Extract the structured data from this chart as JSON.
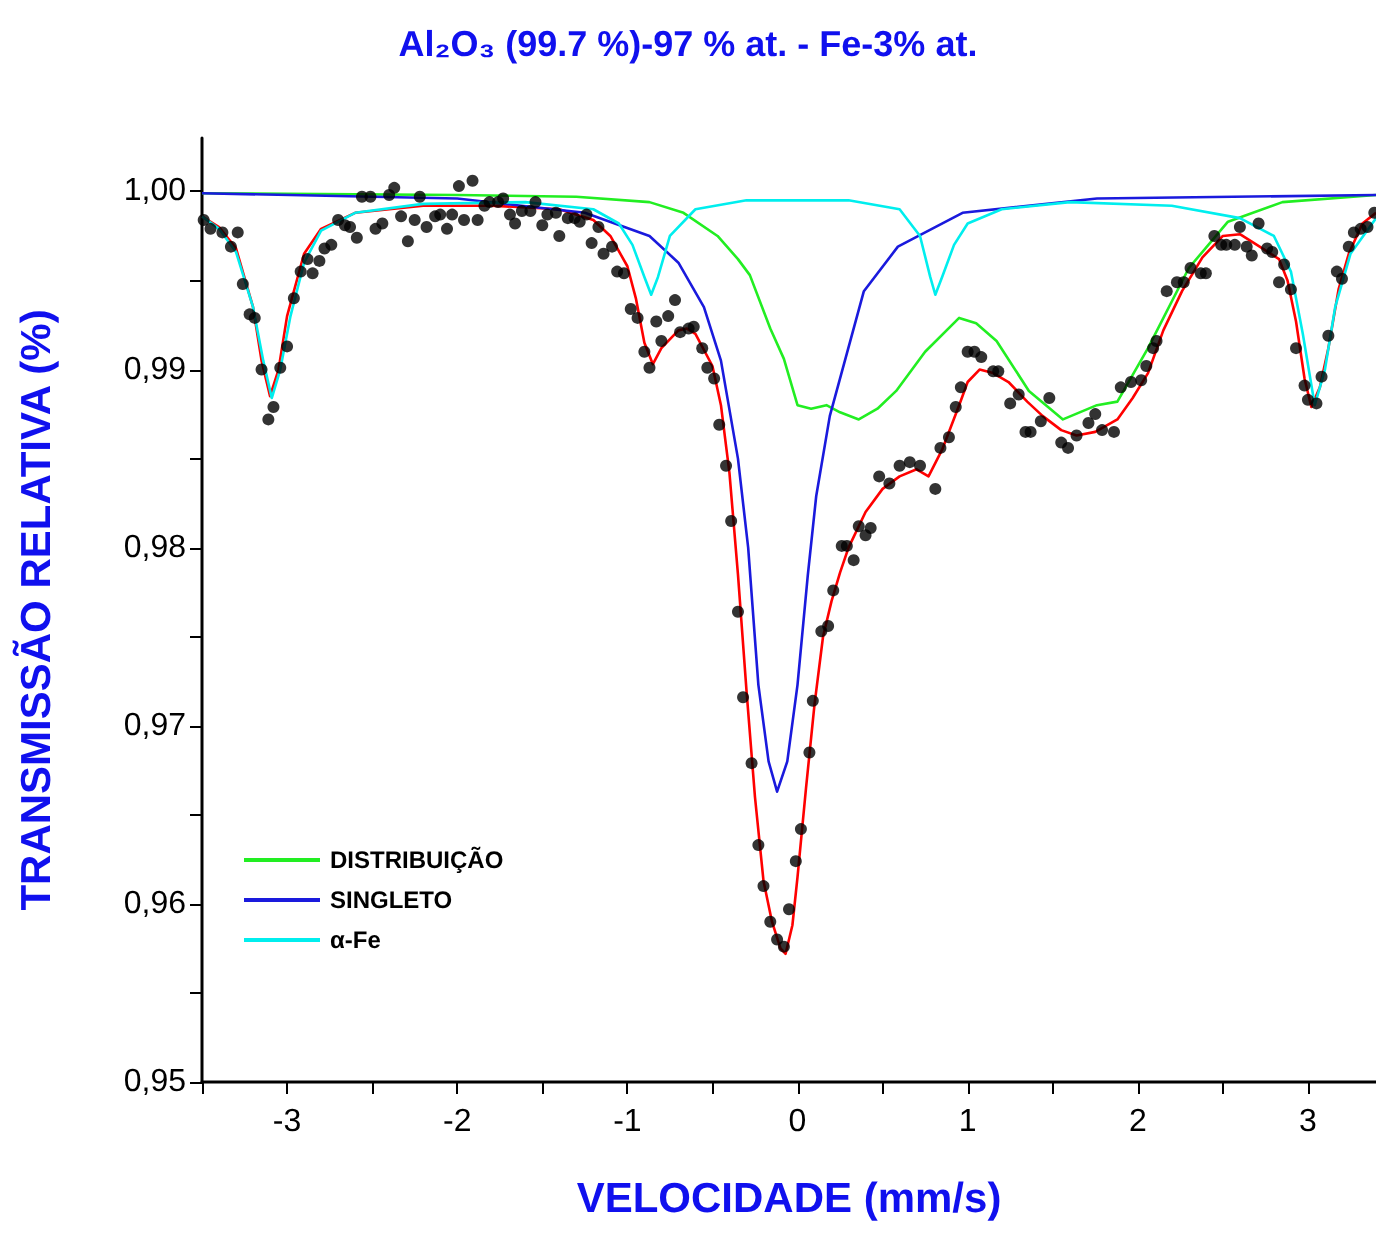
{
  "chart_data": {
    "type": "line",
    "title": "Al₂O₃ (99.7 %)-97 % at. - Fe-3% at.",
    "xlabel": "VELOCIDADE (mm/s)",
    "ylabel": "TRANSMISSÃO RELATIVA (%)",
    "xlim": [
      -3.5,
      3.4
    ],
    "ylim": [
      0.95,
      1.003
    ],
    "xticks": [
      {
        "value": -3.5,
        "label": null
      },
      -3,
      {
        "value": -2.5,
        "label": null
      },
      -2,
      {
        "value": -1.5,
        "label": null
      },
      -1,
      {
        "value": -0.5,
        "label": null
      },
      0,
      {
        "value": 0.5,
        "label": null
      },
      1,
      {
        "value": 1.5,
        "label": null
      },
      2,
      {
        "value": 2.5,
        "label": null
      },
      3
    ],
    "yticks": [
      {
        "value": 0.95,
        "label": "0,95"
      },
      {
        "value": 0.955,
        "label": null
      },
      {
        "value": 0.96,
        "label": "0,96"
      },
      {
        "value": 0.965,
        "label": null
      },
      {
        "value": 0.97,
        "label": "0,97"
      },
      {
        "value": 0.975,
        "label": null
      },
      {
        "value": 0.98,
        "label": "0,98"
      },
      {
        "value": 0.985,
        "label": null
      },
      {
        "value": 0.99,
        "label": "0,99"
      },
      {
        "value": 0.995,
        "label": null
      },
      {
        "value": 1,
        "label": "1,00"
      }
    ],
    "grid": false,
    "legend": "bottom left",
    "line_style": "solid",
    "series": [
      {
        "type": "scatter",
        "marker": "circle",
        "color": "#000000",
        "x": [
          -3.49,
          -3.45,
          -3.38,
          -3.33,
          -3.29,
          -3.26,
          -3.22,
          -3.19,
          -3.15,
          -3.11,
          -3.08,
          -3.04,
          -3.0,
          -2.96,
          -2.92,
          -2.88,
          -2.85,
          -2.81,
          -2.78,
          -2.74,
          -2.7,
          -2.66,
          -2.63,
          -2.59,
          -2.56,
          -2.51,
          -2.48,
          -2.44,
          -2.4,
          -2.37,
          -2.33,
          -2.29,
          -2.25,
          -2.22,
          -2.18,
          -2.13,
          -2.1,
          -2.06,
          -2.03,
          -1.99,
          -1.96,
          -1.91,
          -1.88,
          -1.84,
          -1.81,
          -1.76,
          -1.73,
          -1.69,
          -1.66,
          -1.62,
          -1.57,
          -1.54,
          -1.5,
          -1.47,
          -1.42,
          -1.4,
          -1.35,
          -1.31,
          -1.28,
          -1.24,
          -1.21,
          -1.17,
          -1.14,
          -1.09,
          -1.06,
          -1.02,
          -0.98,
          -0.94,
          -0.9,
          -0.87,
          -0.83,
          -0.8,
          -0.76,
          -0.72,
          -0.69,
          -0.64,
          -0.61,
          -0.56,
          -0.53,
          -0.49,
          -0.46,
          -0.42,
          -0.39,
          -0.35,
          -0.32,
          -0.27,
          -0.23,
          -0.2,
          -0.16,
          -0.12,
          -0.08,
          -0.05,
          -0.01,
          0.02,
          0.07,
          0.09,
          0.14,
          0.18,
          0.21,
          0.26,
          0.29,
          0.33,
          0.36,
          0.4,
          0.43,
          0.48,
          0.54,
          0.6,
          0.66,
          0.72,
          0.81,
          0.84,
          0.89,
          0.93,
          0.96,
          1.0,
          1.04,
          1.08,
          1.15,
          1.18,
          1.25,
          1.3,
          1.34,
          1.37,
          1.43,
          1.48,
          1.55,
          1.59,
          1.64,
          1.71,
          1.75,
          1.79,
          1.86,
          1.9,
          1.96,
          2.02,
          2.05,
          2.09,
          2.11,
          2.17,
          2.23,
          2.27,
          2.31,
          2.37,
          2.4,
          2.45,
          2.49,
          2.52,
          2.57,
          2.6,
          2.64,
          2.67,
          2.71,
          2.76,
          2.79,
          2.83,
          2.86,
          2.9,
          2.93,
          2.98,
          3.0,
          3.05,
          3.08,
          3.12,
          3.17,
          3.2,
          3.24,
          3.27,
          3.31,
          3.35,
          3.39
        ],
        "values": [
          0.9984,
          0.9979,
          0.9977,
          0.9969,
          0.9977,
          0.9948,
          0.9931,
          0.9929,
          0.99,
          0.9872,
          0.9879,
          0.9901,
          0.9913,
          0.994,
          0.9955,
          0.9962,
          0.9954,
          0.9961,
          0.9968,
          0.997,
          0.9984,
          0.9981,
          0.998,
          0.9974,
          0.9997,
          0.9997,
          0.9979,
          0.9982,
          0.9998,
          1.0002,
          0.9986,
          0.9972,
          0.9984,
          0.9997,
          0.998,
          0.9986,
          0.9987,
          0.9979,
          0.9987,
          1.0003,
          0.9984,
          1.0006,
          0.9984,
          0.9992,
          0.9994,
          0.9994,
          0.9996,
          0.9987,
          0.9982,
          0.9989,
          0.9989,
          0.9994,
          0.9981,
          0.9987,
          0.9988,
          0.9975,
          0.9985,
          0.9985,
          0.9983,
          0.9987,
          0.9971,
          0.998,
          0.9965,
          0.9969,
          0.9955,
          0.9954,
          0.9934,
          0.9929,
          0.991,
          0.9901,
          0.9927,
          0.9916,
          0.993,
          0.9939,
          0.9921,
          0.9923,
          0.9924,
          0.9912,
          0.9901,
          0.9895,
          0.9869,
          0.9846,
          0.9815,
          0.9764,
          0.9716,
          0.9679,
          0.9633,
          0.961,
          0.959,
          0.958,
          0.9576,
          0.9597,
          0.9624,
          0.9642,
          0.9685,
          0.9714,
          0.9753,
          0.9756,
          0.9776,
          0.9801,
          0.9801,
          0.9793,
          0.9812,
          0.9807,
          0.9811,
          0.984,
          0.9836,
          0.9846,
          0.9848,
          0.9846,
          0.9833,
          0.9856,
          0.9862,
          0.9879,
          0.989,
          0.991,
          0.991,
          0.9907,
          0.9899,
          0.9899,
          0.9881,
          0.9886,
          0.9865,
          0.9865,
          0.9871,
          0.9884,
          0.9859,
          0.9856,
          0.9863,
          0.987,
          0.9875,
          0.9866,
          0.9865,
          0.989,
          0.9893,
          0.9894,
          0.9902,
          0.9912,
          0.9916,
          0.9944,
          0.9949,
          0.9949,
          0.9957,
          0.9954,
          0.9954,
          0.9975,
          0.997,
          0.997,
          0.997,
          0.998,
          0.9969,
          0.9964,
          0.9982,
          0.9968,
          0.9966,
          0.9949,
          0.9959,
          0.9945,
          0.9912,
          0.9891,
          0.9883,
          0.9881,
          0.9896,
          0.9919,
          0.9955,
          0.9951,
          0.9969,
          0.9977,
          0.9979,
          0.998,
          0.9988
        ]
      },
      {
        "color": "#ff0000",
        "x": [
          -3.5,
          -3.4,
          -3.3,
          -3.2,
          -3.15,
          -3.1,
          -3.05,
          -3.0,
          -2.9,
          -2.8,
          -2.6,
          -2.2,
          -1.8,
          -1.4,
          -1.2,
          -1.1,
          -1.0,
          -0.95,
          -0.9,
          -0.85,
          -0.8,
          -0.7,
          -0.65,
          -0.6,
          -0.5,
          -0.45,
          -0.4,
          -0.35,
          -0.3,
          -0.25,
          -0.2,
          -0.15,
          -0.1,
          -0.07,
          -0.03,
          0.0,
          0.05,
          0.1,
          0.15,
          0.2,
          0.25,
          0.3,
          0.4,
          0.5,
          0.6,
          0.7,
          0.77,
          0.85,
          0.95,
          1.0,
          1.07,
          1.15,
          1.24,
          1.35,
          1.44,
          1.55,
          1.64,
          1.75,
          1.88,
          1.97,
          2.06,
          2.15,
          2.26,
          2.38,
          2.5,
          2.6,
          2.7,
          2.83,
          2.88,
          2.93,
          2.98,
          3.02,
          3.07,
          3.12,
          3.18,
          3.24,
          3.32,
          3.4
        ],
        "values": [
          0.9986,
          0.998,
          0.9968,
          0.9935,
          0.9905,
          0.9885,
          0.99,
          0.993,
          0.9965,
          0.9979,
          0.9988,
          0.9992,
          0.9992,
          0.999,
          0.9984,
          0.9975,
          0.9958,
          0.994,
          0.9915,
          0.9903,
          0.9912,
          0.9922,
          0.9923,
          0.992,
          0.9902,
          0.988,
          0.9842,
          0.9785,
          0.972,
          0.966,
          0.9613,
          0.959,
          0.9575,
          0.9572,
          0.9588,
          0.9615,
          0.9665,
          0.9712,
          0.975,
          0.977,
          0.9786,
          0.98,
          0.982,
          0.9833,
          0.984,
          0.9844,
          0.984,
          0.9855,
          0.988,
          0.9893,
          0.99,
          0.9898,
          0.9893,
          0.9882,
          0.9874,
          0.9866,
          0.9863,
          0.9865,
          0.9872,
          0.9884,
          0.9898,
          0.9922,
          0.9944,
          0.9963,
          0.9975,
          0.9976,
          0.997,
          0.9962,
          0.995,
          0.9927,
          0.9895,
          0.9879,
          0.989,
          0.9912,
          0.9945,
          0.9965,
          0.9982,
          0.9988
        ]
      },
      {
        "name": "DISTRIBUIÇÃO",
        "color": "#22ee22",
        "x": [
          -3.5,
          -2,
          -1.3,
          -0.87,
          -0.67,
          -0.47,
          -0.35,
          -0.28,
          -0.16,
          -0.08,
          0.0,
          0.08,
          0.17,
          0.25,
          0.36,
          0.47,
          0.58,
          0.75,
          0.95,
          1.05,
          1.17,
          1.36,
          1.56,
          1.76,
          1.88,
          2.06,
          2.3,
          2.53,
          2.85,
          3.4
        ],
        "values": [
          0.9999,
          0.9998,
          0.9997,
          0.9994,
          0.9988,
          0.9975,
          0.9962,
          0.9953,
          0.9923,
          0.9906,
          0.988,
          0.9878,
          0.988,
          0.9876,
          0.9872,
          0.9878,
          0.9888,
          0.991,
          0.9929,
          0.9926,
          0.9916,
          0.9888,
          0.9872,
          0.988,
          0.9882,
          0.9912,
          0.9957,
          0.9983,
          0.9994,
          0.9998
        ]
      },
      {
        "name": "SINGLETO",
        "color": "#1a1add",
        "x": [
          -3.5,
          -2,
          -1.25,
          -0.87,
          -0.7,
          -0.55,
          -0.45,
          -0.35,
          -0.29,
          -0.23,
          -0.17,
          -0.12,
          -0.06,
          0.0,
          0.06,
          0.11,
          0.19,
          0.39,
          0.59,
          0.97,
          1.76,
          3.4
        ],
        "values": [
          0.9999,
          0.9996,
          0.9988,
          0.9975,
          0.996,
          0.9935,
          0.9905,
          0.985,
          0.98,
          0.9723,
          0.968,
          0.9663,
          0.968,
          0.9723,
          0.9784,
          0.9829,
          0.9874,
          0.9944,
          0.9969,
          0.9988,
          0.9996,
          0.9998
        ]
      },
      {
        "name": "α-Fe",
        "color": "#00eeee",
        "x": [
          -3.5,
          -3.4,
          -3.3,
          -3.2,
          -3.14,
          -3.09,
          -3.04,
          -2.98,
          -2.9,
          -2.8,
          -2.6,
          -2.2,
          -1.6,
          -1.2,
          -1.05,
          -0.97,
          -0.9,
          -0.86,
          -0.82,
          -0.75,
          -0.6,
          -0.3,
          0.3,
          0.6,
          0.72,
          0.78,
          0.81,
          0.85,
          0.92,
          1.0,
          1.2,
          1.6,
          2.2,
          2.6,
          2.8,
          2.9,
          2.97,
          3.04,
          3.1,
          3.16,
          3.25,
          3.4
        ],
        "values": [
          0.9986,
          0.9979,
          0.9966,
          0.9935,
          0.9905,
          0.9884,
          0.99,
          0.993,
          0.996,
          0.9978,
          0.9988,
          0.9993,
          0.9994,
          0.999,
          0.9982,
          0.997,
          0.9952,
          0.9942,
          0.9952,
          0.9975,
          0.999,
          0.9995,
          0.9995,
          0.999,
          0.9975,
          0.9952,
          0.9942,
          0.9952,
          0.997,
          0.9982,
          0.999,
          0.9994,
          0.9992,
          0.9985,
          0.9975,
          0.9955,
          0.992,
          0.988,
          0.99,
          0.9935,
          0.9965,
          0.9985
        ]
      }
    ]
  }
}
